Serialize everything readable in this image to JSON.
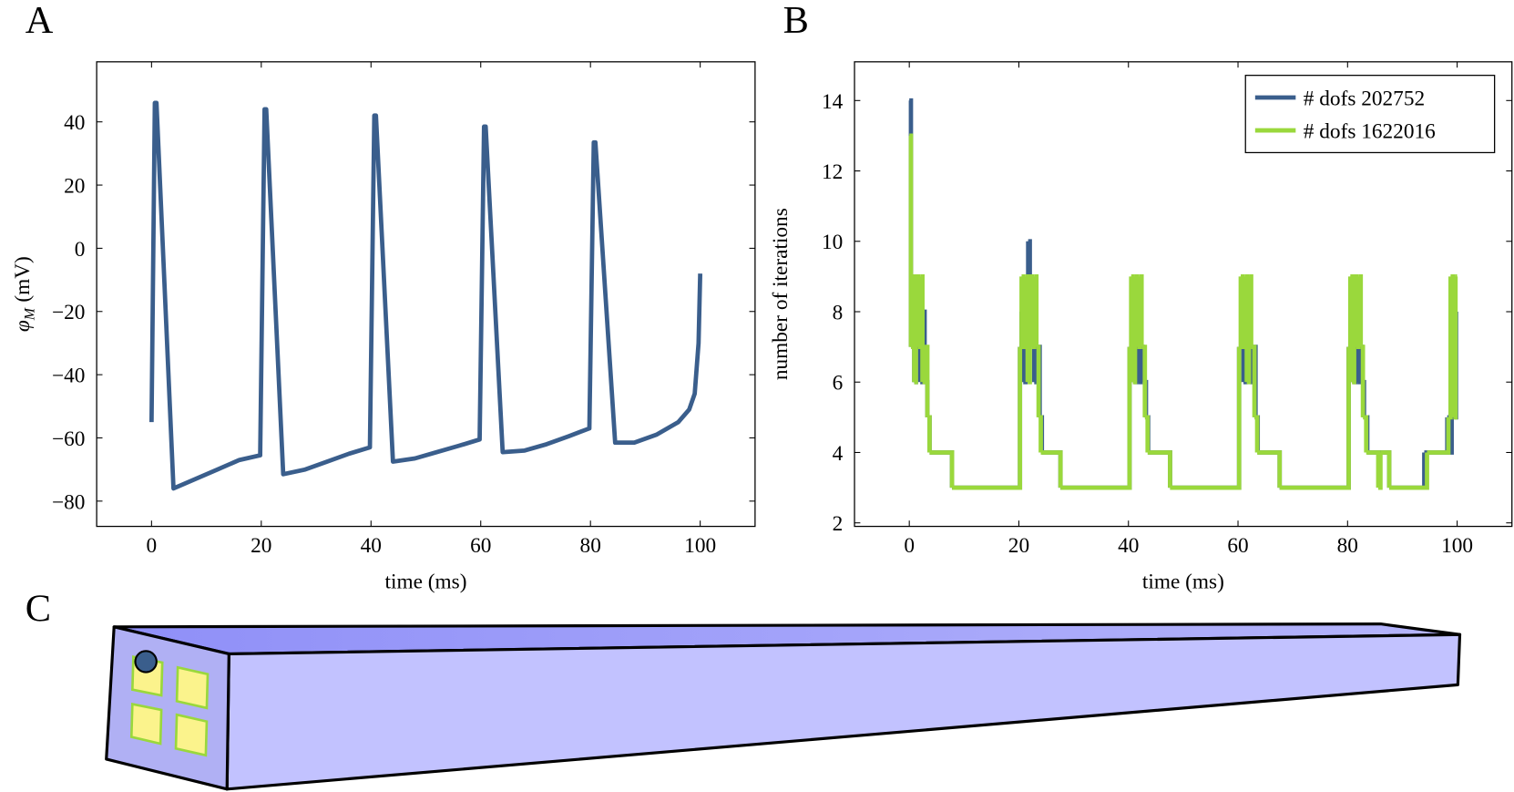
{
  "chart_data": [
    {
      "type": "line",
      "panel": "A",
      "xlabel": "time (ms)",
      "ylabel": [
        "φ",
        "M",
        "(mV)"
      ],
      "xlim": [
        -10,
        110
      ],
      "ylim": [
        -88,
        59
      ],
      "xticks": [
        0,
        20,
        40,
        60,
        80,
        100
      ],
      "yticks": [
        {
          "value": -80,
          "label": "−80"
        },
        {
          "value": -60,
          "label": "−60"
        },
        {
          "value": -40,
          "label": "−40"
        },
        {
          "value": -20,
          "label": "−20"
        },
        0,
        20,
        40
      ],
      "series": [
        {
          "color": "#3a5e8c",
          "x": [
            0,
            0.6,
            0.9,
            4,
            8,
            12,
            16,
            19.8,
            20.6,
            20.9,
            24,
            28,
            32,
            36,
            39.8,
            40.6,
            40.9,
            44,
            48,
            52,
            56,
            59.8,
            60.6,
            60.9,
            64,
            68,
            72,
            76,
            79.8,
            80.6,
            80.9,
            84.5,
            88,
            92,
            96,
            98,
            99,
            99.7,
            100
          ],
          "values": [
            -55,
            46,
            46,
            -76,
            -73,
            -70,
            -67,
            -65.5,
            44,
            44,
            -71.5,
            -70,
            -67.5,
            -65,
            -63,
            42,
            42,
            -67.5,
            -66.5,
            -64.5,
            -62.5,
            -60.5,
            38.5,
            38.5,
            -64.5,
            -64,
            -62,
            -59.5,
            -57,
            33.5,
            33.5,
            -61.5,
            -61.5,
            -59,
            -55,
            -51,
            -46,
            -30,
            -8
          ]
        }
      ]
    },
    {
      "type": "line",
      "drawstyle": "steps-post",
      "panel": "B",
      "xlabel": "time (ms)",
      "ylabel": "number of iterations",
      "xlim": [
        -10,
        110
      ],
      "ylim": [
        1.9,
        15.1
      ],
      "xticks": [
        0,
        20,
        40,
        60,
        80,
        100
      ],
      "yticks": [
        2,
        4,
        6,
        8,
        10,
        12,
        14
      ],
      "legend": "upper right",
      "series": [
        {
          "name": "# dofs 202752",
          "color": "#3a5e8c",
          "x": [
            0,
            0.3,
            0.6,
            0.9,
            1.2,
            1.6,
            2.0,
            2.4,
            2.8,
            3.3,
            3.7,
            7.8,
            20.2,
            20.5,
            20.8,
            21.2,
            21.7,
            22,
            22.4,
            22.8,
            23.2,
            23.8,
            24.2,
            27.6,
            40.2,
            40.6,
            41,
            41.4,
            41.8,
            42.2,
            42.6,
            43.2,
            43.6,
            47.6,
            60.2,
            60.6,
            61,
            61.4,
            61.8,
            62.2,
            62.6,
            63.2,
            63.6,
            67.6,
            80.2,
            80.6,
            81,
            81.4,
            81.8,
            82.2,
            82.6,
            83,
            83.6,
            87.6,
            94,
            98.2,
            98.6,
            99,
            99.5,
            99.8,
            100
          ],
          "values": [
            14,
            7,
            9,
            6,
            7,
            8,
            6,
            8,
            6,
            5,
            4,
            3,
            7,
            8,
            6,
            8,
            10,
            8,
            7,
            6,
            7,
            5,
            4,
            3,
            7,
            8,
            6,
            8,
            6,
            7,
            6,
            5,
            4,
            3,
            7,
            8,
            6,
            7,
            8,
            6,
            7,
            5,
            4,
            3,
            7,
            8,
            6,
            8,
            6,
            7,
            6,
            5,
            4,
            3,
            4,
            5,
            4,
            6,
            5,
            8,
            8
          ]
        },
        {
          "name": "# dofs 1622016",
          "color": "#9ad83c",
          "x": [
            0,
            0.3,
            0.6,
            0.9,
            1.2,
            1.6,
            2.0,
            2.4,
            2.8,
            3.3,
            3.7,
            7.8,
            20.2,
            20.5,
            20.8,
            21.2,
            21.6,
            22,
            22.4,
            22.8,
            23.2,
            23.6,
            24,
            27.6,
            40.2,
            40.5,
            40.8,
            41.2,
            41.6,
            42,
            42.4,
            43,
            43.5,
            47.6,
            60.2,
            60.5,
            60.8,
            61.2,
            61.6,
            62,
            62.4,
            63,
            63.5,
            67.6,
            80.2,
            80.5,
            80.8,
            81.2,
            81.6,
            82,
            82.4,
            82.8,
            83.4,
            85.6,
            86,
            87.6,
            94.5,
            98.4,
            98.8,
            99.3,
            99.7,
            100
          ],
          "values": [
            13,
            7,
            9,
            6,
            9,
            7,
            9,
            6,
            7,
            5,
            4,
            3,
            7,
            9,
            7,
            9,
            6,
            9,
            7,
            9,
            7,
            5,
            4,
            3,
            7,
            9,
            6,
            9,
            7,
            9,
            7,
            5,
            4,
            3,
            7,
            9,
            7,
            9,
            6,
            9,
            7,
            5,
            4,
            3,
            7,
            9,
            6,
            9,
            7,
            9,
            7,
            5,
            4,
            3,
            4,
            3,
            4,
            5,
            9,
            5,
            9,
            9
          ]
        }
      ]
    }
  ],
  "diagram": {
    "panel": "C"
  }
}
